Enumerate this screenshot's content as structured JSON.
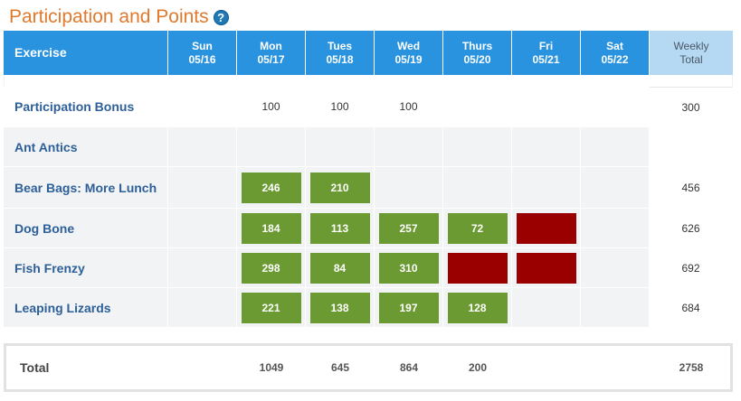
{
  "title": "Participation and Points",
  "help_icon": "?",
  "header": {
    "exercise_label": "Exercise",
    "days": [
      {
        "name": "Sun",
        "date": "05/16"
      },
      {
        "name": "Mon",
        "date": "05/17"
      },
      {
        "name": "Tues",
        "date": "05/18"
      },
      {
        "name": "Wed",
        "date": "05/19"
      },
      {
        "name": "Thurs",
        "date": "05/20"
      },
      {
        "name": "Fri",
        "date": "05/21"
      },
      {
        "name": "Sat",
        "date": "05/22"
      }
    ],
    "weekly_line1": "Weekly",
    "weekly_line2": "Total"
  },
  "rows": [
    {
      "label": "Participation Bonus",
      "kind": "plain",
      "cells": [
        {
          "value": "",
          "status": "none"
        },
        {
          "value": "100",
          "status": "plain"
        },
        {
          "value": "100",
          "status": "plain"
        },
        {
          "value": "100",
          "status": "plain"
        },
        {
          "value": "",
          "status": "none"
        },
        {
          "value": "",
          "status": "none"
        },
        {
          "value": "",
          "status": "none"
        }
      ],
      "weekly": "300"
    },
    {
      "label": "Ant Antics",
      "kind": "exercise",
      "cells": [
        {
          "value": "",
          "status": "none"
        },
        {
          "value": "",
          "status": "none"
        },
        {
          "value": "",
          "status": "none"
        },
        {
          "value": "",
          "status": "none"
        },
        {
          "value": "",
          "status": "none"
        },
        {
          "value": "",
          "status": "none"
        },
        {
          "value": "",
          "status": "none"
        }
      ],
      "weekly": ""
    },
    {
      "label": "Bear Bags: More Lunch",
      "kind": "exercise",
      "cells": [
        {
          "value": "",
          "status": "none"
        },
        {
          "value": "246",
          "status": "done"
        },
        {
          "value": "210",
          "status": "done"
        },
        {
          "value": "",
          "status": "none"
        },
        {
          "value": "",
          "status": "none"
        },
        {
          "value": "",
          "status": "none"
        },
        {
          "value": "",
          "status": "none"
        }
      ],
      "weekly": "456"
    },
    {
      "label": "Dog Bone",
      "kind": "exercise",
      "cells": [
        {
          "value": "",
          "status": "none"
        },
        {
          "value": "184",
          "status": "done"
        },
        {
          "value": "113",
          "status": "done"
        },
        {
          "value": "257",
          "status": "done"
        },
        {
          "value": "72",
          "status": "done"
        },
        {
          "value": "",
          "status": "missed"
        },
        {
          "value": "",
          "status": "none"
        }
      ],
      "weekly": "626"
    },
    {
      "label": "Fish Frenzy",
      "kind": "exercise",
      "cells": [
        {
          "value": "",
          "status": "none"
        },
        {
          "value": "298",
          "status": "done"
        },
        {
          "value": "84",
          "status": "done"
        },
        {
          "value": "310",
          "status": "done"
        },
        {
          "value": "",
          "status": "missed"
        },
        {
          "value": "",
          "status": "missed"
        },
        {
          "value": "",
          "status": "none"
        }
      ],
      "weekly": "692"
    },
    {
      "label": "Leaping Lizards",
      "kind": "exercise",
      "cells": [
        {
          "value": "",
          "status": "none"
        },
        {
          "value": "221",
          "status": "done"
        },
        {
          "value": "138",
          "status": "done"
        },
        {
          "value": "197",
          "status": "done"
        },
        {
          "value": "128",
          "status": "done"
        },
        {
          "value": "",
          "status": "none"
        },
        {
          "value": "",
          "status": "none"
        }
      ],
      "weekly": "684"
    }
  ],
  "totals": {
    "label": "Total",
    "days": [
      "",
      "1049",
      "645",
      "864",
      "200",
      "",
      ""
    ],
    "weekly": "2758"
  },
  "colors": {
    "title": "#e07a2e",
    "header_blue": "#2a93e0",
    "weekly_header": "#b5d9f3",
    "done_green": "#6a9a31",
    "missed_red": "#9a0000",
    "label_blue": "#2d5f98"
  }
}
